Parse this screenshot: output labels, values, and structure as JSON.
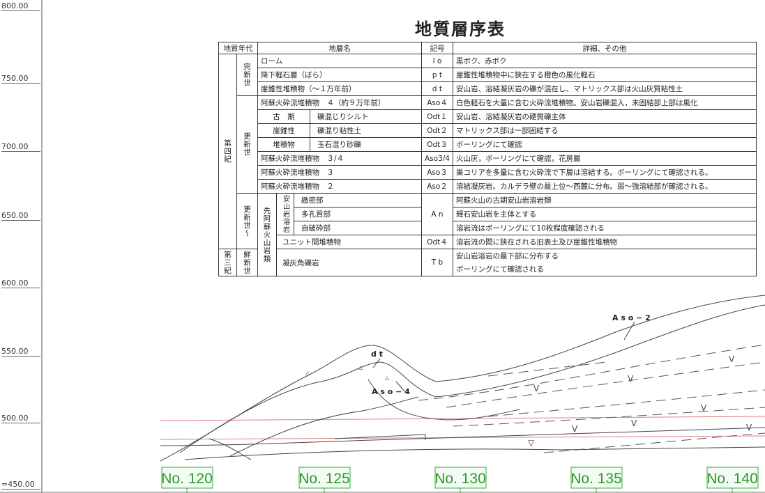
{
  "elevations": [
    "800.00",
    "750.00",
    "700.00",
    "650.00",
    "600.00",
    "550.00",
    "500.00",
    "=450.00"
  ],
  "title": "地質層序表",
  "table": {
    "header": [
      "地質年代",
      "地層名",
      "記号",
      "詳細、その他"
    ],
    "rows": [
      [
        "第四紀",
        "完新世",
        "ローム",
        "I o",
        "黒ボク、赤ボク"
      ],
      [
        "降下軽石層（ぼら）",
        "p t",
        "崖錐性堆積物中に狭在する橙色の風化軽石"
      ],
      [
        "崖錐性堆積物（〜１万年前）",
        "d t",
        "安山岩、溶結凝灰岩の礫が混在し、マトリックス部は火山灰質粘性土"
      ],
      [
        "更新世",
        "阿蘇火砕流堆積物　４（約９万年前）",
        "Aso４",
        "白色軽石を大量に含む火砕流堆積物。安山岩礫混入，未固結部上部は風化"
      ],
      [
        "古　期",
        "礫混じりシルト",
        "Odt１",
        "安山岩、溶結凝灰岩の硬質礫主体"
      ],
      [
        "崖錐性",
        "礫混り粘性土",
        "Odt２",
        "マトリックス部は一部固結する"
      ],
      [
        "堆積物",
        "玉石混り砂礫",
        "Odt３",
        "ボーリングにて確認"
      ],
      [
        "阿蘇火砕流堆積物　３/４",
        "Aso3/4",
        "火山灰，ボーリングにて確認，花房層"
      ],
      [
        "阿蘇火砕流堆積物　３",
        "Aso３",
        "巣コリアを多量に含む火砕流で下層は溶結する。ボーリングにて確認される。"
      ],
      [
        "阿蘇火砕流堆積物　２",
        "Aso２",
        "溶結凝灰岩。カルデラ壁の最上位〜西麓に分布。弱〜強溶結部が確認される。"
      ],
      [
        "更新世〜",
        "先阿蘇火山岩類",
        "安山岩溶岩",
        "緻密部",
        "A n",
        "阿蘇火山の古期安山岩溶岩類"
      ],
      [
        "多孔質部",
        "輝石安山岩を主体とする"
      ],
      [
        "自破砕部",
        "溶岩流はボーリングにて10枚程度確認される"
      ],
      [
        "ユニット間堆積物",
        "Odt４",
        "溶岩流の間に狭在される旧表土及び崖錐性堆積物"
      ],
      [
        "第三紀",
        "鮮新世",
        "凝灰角礫岩",
        "T b",
        "安山岩溶岩の最下部に分布する"
      ],
      [
        "ボーリングにて確認される"
      ]
    ]
  },
  "section_labels": [
    "d t",
    "A s o − 4",
    "A s o − 2"
  ],
  "stations": [
    "No. 120",
    "No. 125",
    "No. 130",
    "No. 135",
    "No. 140"
  ]
}
